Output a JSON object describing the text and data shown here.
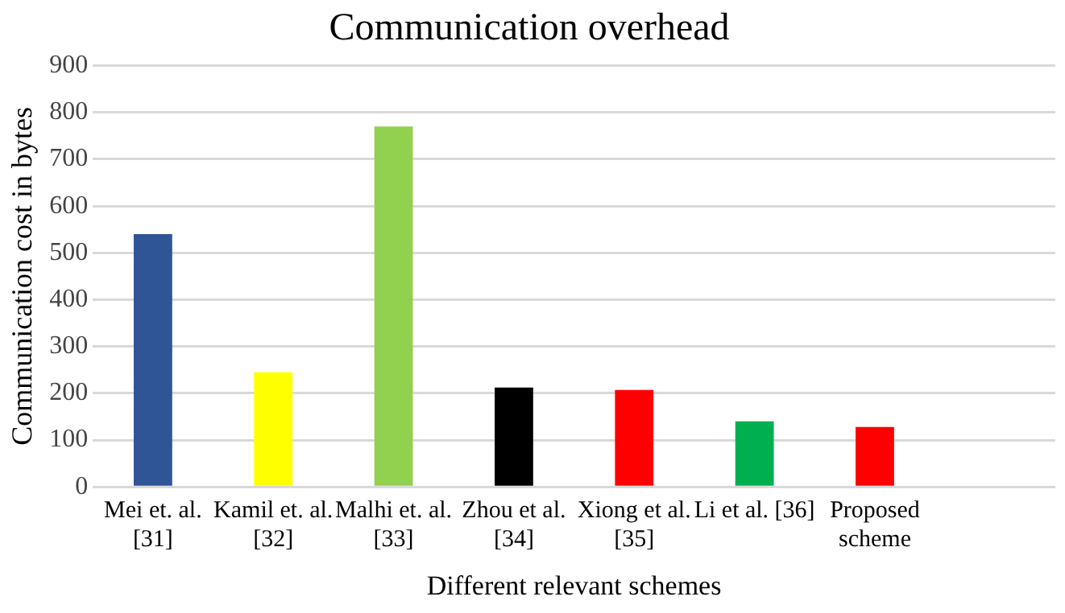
{
  "chart_data": {
    "type": "bar",
    "title": "Communication overhead",
    "xlabel": "Different relevant schemes",
    "ylabel": "Communication cost in bytes",
    "categories": [
      "Mei et. al. [31]",
      "Kamil et. al. [32]",
      "Malhi et. al. [33]",
      "Zhou et al. [34]",
      "Xiong et al. [35]",
      "Li et al. [36]",
      "Proposed scheme",
      null
    ],
    "values": [
      540,
      245,
      770,
      212,
      207,
      140,
      128,
      null
    ],
    "colors": [
      "#2f5597",
      "#ffff00",
      "#92d050",
      "#000000",
      "#ff0000",
      "#00b050",
      "#ff0000",
      "#ffffff"
    ],
    "ylim": [
      0,
      900
    ],
    "yticks": [
      0,
      100,
      200,
      300,
      400,
      500,
      600,
      700,
      800,
      900
    ],
    "grid": "y",
    "legend": false
  }
}
